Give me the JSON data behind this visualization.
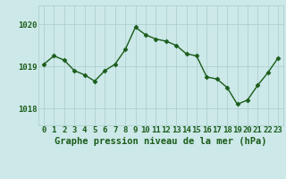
{
  "x": [
    0,
    1,
    2,
    3,
    4,
    5,
    6,
    7,
    8,
    9,
    10,
    11,
    12,
    13,
    14,
    15,
    16,
    17,
    18,
    19,
    20,
    21,
    22,
    23
  ],
  "y": [
    1019.05,
    1019.25,
    1019.15,
    1018.9,
    1018.8,
    1018.65,
    1018.9,
    1019.05,
    1019.4,
    1019.93,
    1019.75,
    1019.65,
    1019.6,
    1019.5,
    1019.3,
    1019.25,
    1018.75,
    1018.7,
    1018.5,
    1018.1,
    1018.2,
    1018.55,
    1018.85,
    1019.2
  ],
  "line_color": "#1a5c1a",
  "marker_color": "#1a5c1a",
  "bg_color": "#cce8e8",
  "grid_color": "#aacccc",
  "tick_label_color": "#1a5c1a",
  "xlabel": "Graphe pression niveau de la mer (hPa)",
  "xlabel_color": "#1a5c1a",
  "yticks": [
    1018,
    1019,
    1020
  ],
  "ylim": [
    1017.6,
    1020.45
  ],
  "xlim": [
    -0.5,
    23.5
  ],
  "label_fontsize": 7.5,
  "tick_fontsize": 6.5
}
